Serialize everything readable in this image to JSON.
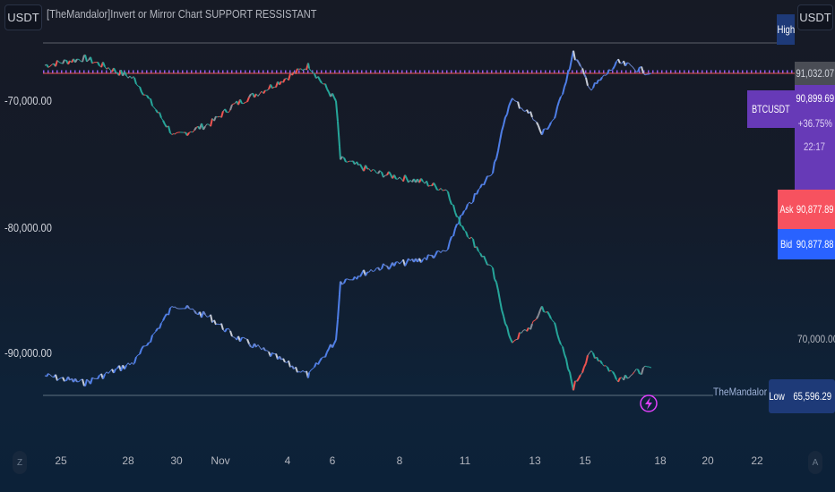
{
  "header": {
    "currency_left": "USDT",
    "currency_right": "USDT",
    "indicator_title": "[TheMandalor]Invert or Mirror Chart SUPPORT RESSISTANT"
  },
  "left_axis": {
    "labels": [
      "-70,000.00",
      "-80,000.00",
      "-90,000.00"
    ]
  },
  "right_axis": {
    "high_label": "High",
    "high_price": "91,032.07",
    "symbol": "BTCUSDT",
    "last_price": "90,899.69",
    "change": "+36.75%",
    "countdown": "22:17",
    "ask_label": "Ask",
    "ask_price": "90,877.89",
    "bid_label": "Bid",
    "bid_price": "90,877.88",
    "tick": "70,000.00",
    "low_label": "Low",
    "low_price": "65,596.29",
    "indicator_tag": "TheMandalor"
  },
  "time_axis": {
    "labels": [
      "25",
      "28",
      "30",
      "Nov",
      "4",
      "6",
      "8",
      "11",
      "13",
      "15",
      "18",
      "20",
      "22"
    ],
    "left_btn": "Z",
    "right_btn": "A"
  },
  "colors": {
    "up": "#26a69a",
    "down": "#ef5350",
    "main": "#4f7fe8",
    "symbol": "#673ab7",
    "ask": "#f7525f",
    "bid": "#2962ff",
    "high_low": "#1e3a78",
    "alert": "#e040fb"
  },
  "icons": {
    "alert": "lightning-icon"
  },
  "chart_data": {
    "type": "line",
    "series": [
      {
        "name": "BTCUSDT",
        "x": [
          "Oct 24",
          "Oct 26",
          "Oct 28",
          "Oct 30",
          "Oct 31",
          "Nov 1",
          "Nov 3",
          "Nov 4.5",
          "Nov 5.5",
          "Nov 6",
          "Nov 7.5",
          "Nov 9.5",
          "Nov 10",
          "Nov 10.5",
          "Nov 11.5",
          "Nov 12.5",
          "Nov 13",
          "Nov 13.5",
          "Nov 14",
          "Nov 14.7",
          "Nov 15.7",
          "Nov 16.5",
          "Nov 17"
        ],
        "y": [
          67180,
          66610,
          68240,
          72820,
          71760,
          70350,
          68940,
          67180,
          70000,
          74590,
          75650,
          76350,
          77060,
          79170,
          83410,
          89050,
          87640,
          86230,
          87640,
          92580,
          89760,
          91870,
          91030
        ]
      },
      {
        "mirror_of": "BTCUSDT"
      }
    ],
    "ylim_right": [
      64000,
      93000
    ],
    "ylim_left_inverted": [
      -64000,
      -93000
    ],
    "high": 91032.07,
    "low": 65596.29
  }
}
